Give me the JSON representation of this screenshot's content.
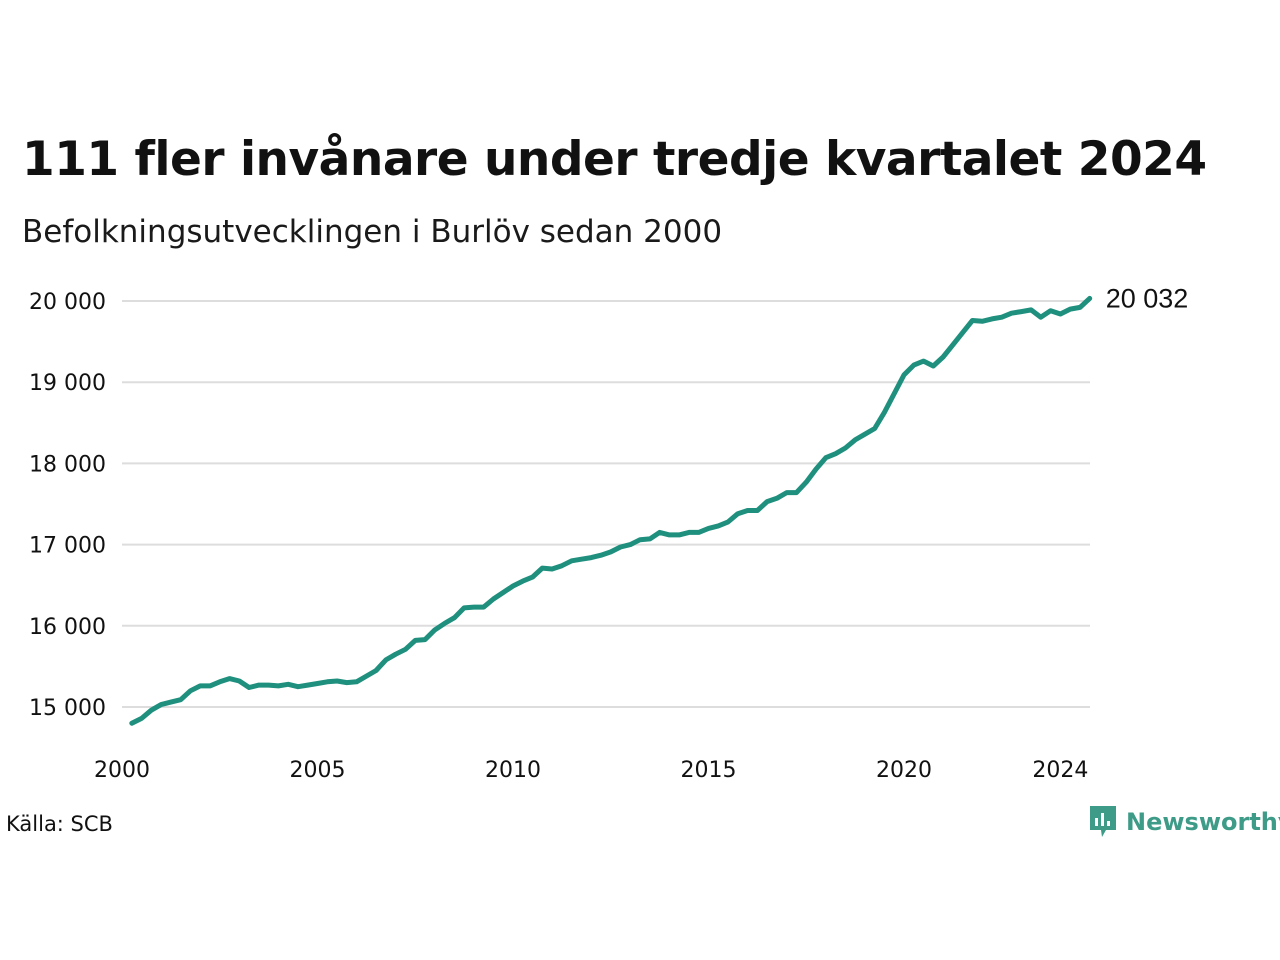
{
  "header": {
    "title": "111 fler invånare under tredje kvartalet 2024",
    "subtitle": "Befolkningsutvecklingen i Burlöv sedan 2000"
  },
  "footer": {
    "source": "Källa: SCB",
    "brand": "Newsworthy"
  },
  "colors": {
    "line": "#1f8f7e",
    "grid": "#dddddd",
    "brand": "#3d9b87"
  },
  "chart_data": {
    "type": "line",
    "title": "111 fler invånare under tredje kvartalet 2024",
    "subtitle": "Befolkningsutvecklingen i Burlöv sedan 2000",
    "xlabel": "",
    "ylabel": "",
    "xlim": [
      2000,
      2024.75
    ],
    "ylim": [
      14700,
      20150
    ],
    "grid": true,
    "yticks": [
      15000,
      16000,
      17000,
      18000,
      19000,
      20000
    ],
    "ytick_labels": [
      "15 000",
      "16 000",
      "17 000",
      "18 000",
      "19 000",
      "20 000"
    ],
    "xticks": [
      2000,
      2005,
      2010,
      2015,
      2020,
      2024
    ],
    "xtick_labels": [
      "2000",
      "2005",
      "2010",
      "2015",
      "2020",
      "2024"
    ],
    "end_label": "20 032",
    "series": [
      {
        "x": [
          2000.25,
          2000.5,
          2000.75,
          2001,
          2001.25,
          2001.5,
          2001.75,
          2002,
          2002.25,
          2002.5,
          2002.75,
          2003,
          2003.25,
          2003.5,
          2003.75,
          2004,
          2004.25,
          2004.5,
          2004.75,
          2005,
          2005.25,
          2005.5,
          2005.75,
          2006,
          2006.25,
          2006.5,
          2006.75,
          2007,
          2007.25,
          2007.5,
          2007.75,
          2008,
          2008.25,
          2008.5,
          2008.75,
          2009,
          2009.25,
          2009.5,
          2009.75,
          2010,
          2010.25,
          2010.5,
          2010.75,
          2011,
          2011.25,
          2011.5,
          2011.75,
          2012,
          2012.25,
          2012.5,
          2012.75,
          2013,
          2013.25,
          2013.5,
          2013.75,
          2014,
          2014.25,
          2014.5,
          2014.75,
          2015,
          2015.25,
          2015.5,
          2015.75,
          2016,
          2016.25,
          2016.5,
          2016.75,
          2017,
          2017.25,
          2017.5,
          2017.75,
          2018,
          2018.25,
          2018.5,
          2018.75,
          2019,
          2019.25,
          2019.5,
          2019.75,
          2020,
          2020.25,
          2020.5,
          2020.75,
          2021,
          2021.25,
          2021.5,
          2021.75,
          2022,
          2022.25,
          2022.5,
          2022.75,
          2023,
          2023.25,
          2023.5,
          2023.75,
          2024,
          2024.25,
          2024.5,
          2024.75
        ],
        "values": [
          14800,
          14860,
          14960,
          15030,
          15060,
          15090,
          15200,
          15260,
          15260,
          15310,
          15350,
          15320,
          15240,
          15270,
          15270,
          15260,
          15280,
          15250,
          15270,
          15290,
          15310,
          15320,
          15300,
          15310,
          15380,
          15450,
          15580,
          15650,
          15710,
          15820,
          15830,
          15950,
          16030,
          16100,
          16220,
          16230,
          16230,
          16330,
          16410,
          16490,
          16550,
          16600,
          16710,
          16700,
          16740,
          16800,
          16820,
          16840,
          16870,
          16910,
          16970,
          17000,
          17060,
          17070,
          17150,
          17120,
          17120,
          17150,
          17150,
          17200,
          17230,
          17280,
          17380,
          17420,
          17420,
          17530,
          17570,
          17640,
          17640,
          17770,
          17930,
          18070,
          18120,
          18190,
          18290,
          18360,
          18430,
          18630,
          18860,
          19090,
          19210,
          19260,
          19200,
          19310,
          19460,
          19610,
          19760,
          19750,
          19780,
          19800,
          19850,
          19870,
          19890,
          19800,
          19880,
          19840,
          19900,
          19921,
          20032
        ]
      }
    ]
  }
}
